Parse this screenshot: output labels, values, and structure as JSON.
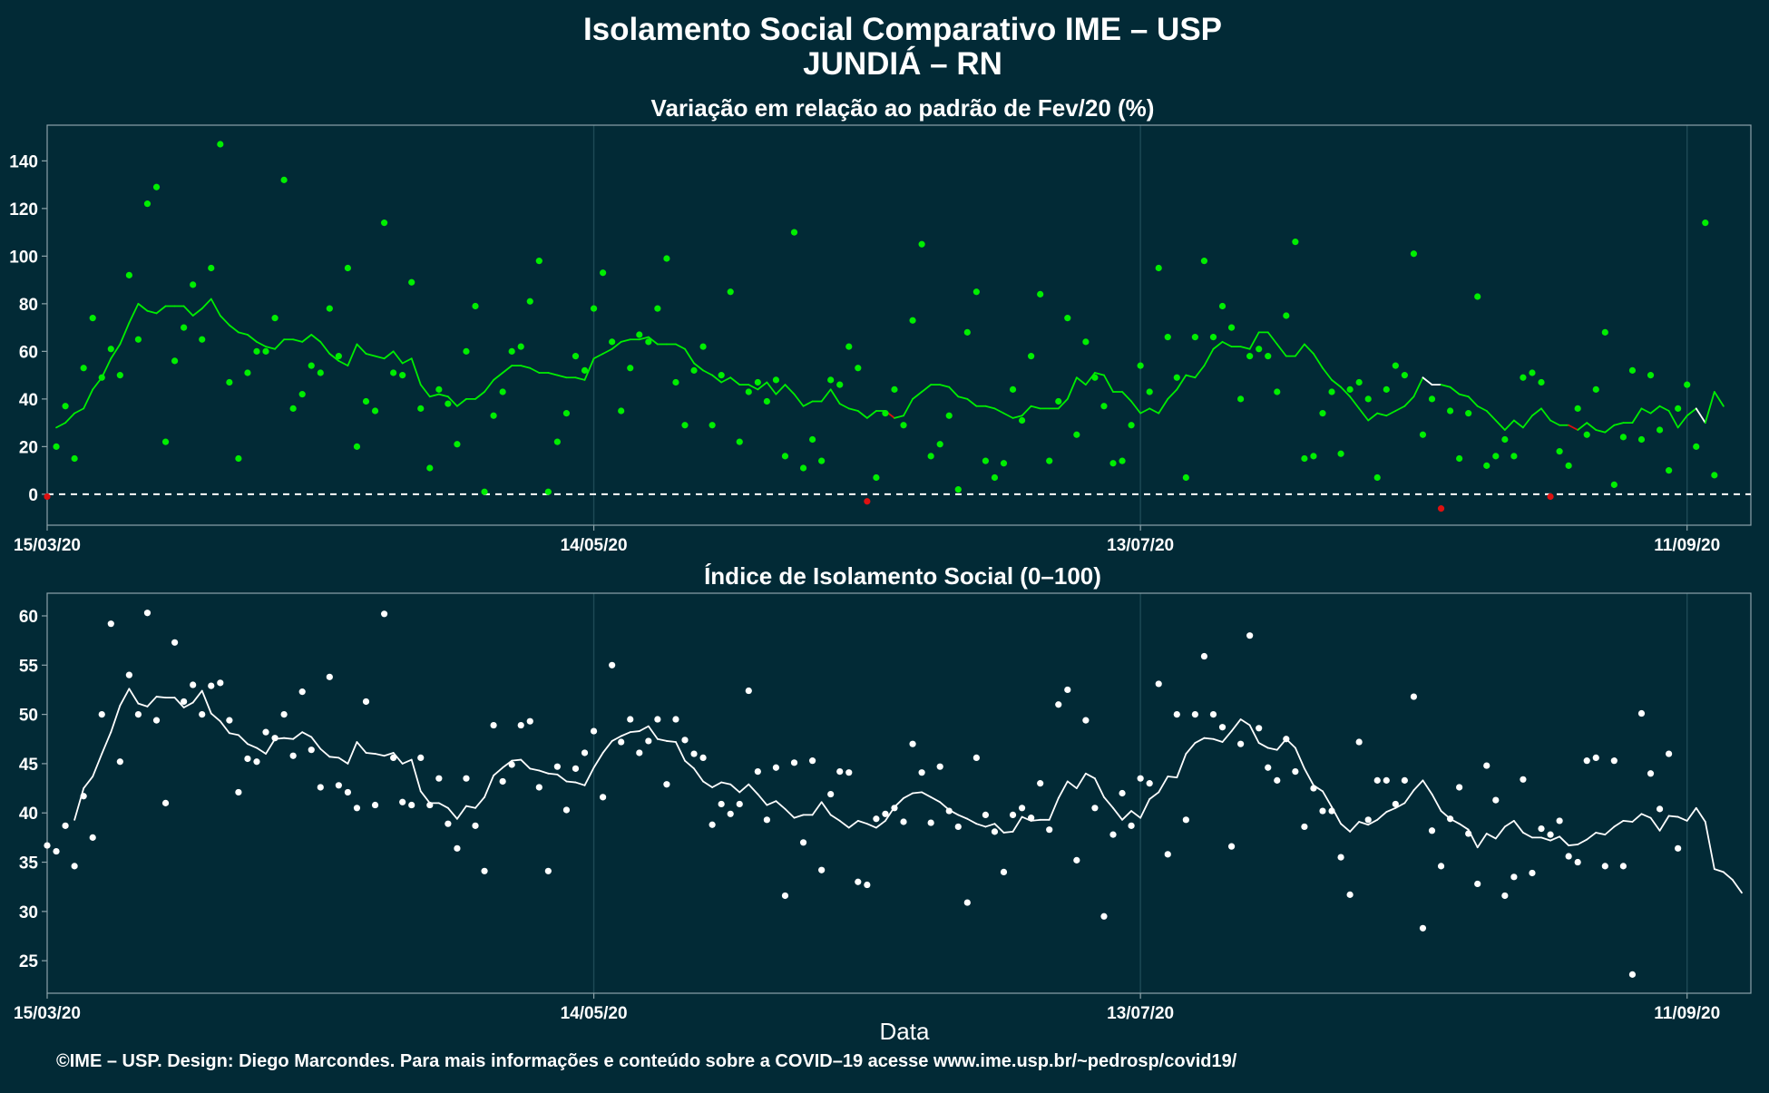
{
  "header": {
    "title": "Isolamento Social Comparativo IME – USP",
    "subtitle": "JUNDIÁ – RN"
  },
  "caption": "©IME – USP. Design: Diego Marcondes. Para mais informações e conteúdo sobre a COVID–19 acesse www.ime.usp.br/~pedrosp/covid19/",
  "colors": {
    "background": "#022a36",
    "panel_border": "#8da3aa",
    "grid": "#1e4a56",
    "green": "#00ee00",
    "red": "#dd1111",
    "white": "#ffffff"
  },
  "chart_data": [
    {
      "type": "scatter",
      "title": "Variação em relação ao padrão de Fev/20 (%)",
      "xlabel": "",
      "ylabel": "",
      "x_start": "15/03/20",
      "x_end": "18/09/20",
      "x_ticks": [
        "15/03/20",
        "14/05/20",
        "13/07/20",
        "11/09/20"
      ],
      "y_ticks": [
        0,
        20,
        40,
        60,
        80,
        100,
        120,
        140
      ],
      "ylim": [
        -13,
        155
      ],
      "reference_line": 0,
      "series": [
        {
          "kind": "daily_points",
          "values": [
            -1,
            20,
            37,
            15,
            53,
            74,
            49,
            61,
            50,
            92,
            65,
            122,
            129,
            22,
            56,
            70,
            88,
            65,
            95,
            147,
            47,
            15,
            51,
            60,
            60,
            74,
            132,
            36,
            42,
            54,
            51,
            78,
            58,
            95,
            20,
            39,
            35,
            114,
            51,
            50,
            89,
            36,
            11,
            44,
            38,
            21,
            60,
            79,
            1,
            33,
            43,
            60,
            62,
            81,
            98,
            1,
            22,
            34,
            58,
            52,
            78,
            93,
            64,
            35,
            53,
            67,
            64,
            78,
            99,
            47,
            29,
            52,
            62,
            29,
            50,
            85,
            22,
            43,
            47,
            39,
            48,
            16,
            110,
            11,
            23,
            14,
            48,
            46,
            62,
            53,
            -3,
            7,
            34,
            44,
            29,
            73,
            105,
            16,
            21,
            33,
            2,
            68,
            85,
            14,
            7,
            13,
            44,
            31,
            58,
            84,
            14,
            39,
            74,
            25,
            64,
            49,
            37,
            13,
            14,
            29,
            54,
            43,
            95,
            66,
            49,
            7,
            66,
            98,
            66,
            79,
            70,
            40,
            58,
            61,
            58,
            43,
            75,
            106,
            15,
            16,
            34,
            43,
            17,
            44,
            47,
            40,
            7,
            44,
            54,
            50,
            101,
            25,
            40,
            -6,
            35,
            15,
            34,
            83,
            12,
            16,
            23,
            16,
            49,
            51,
            47,
            -1,
            18,
            12,
            36,
            25,
            44,
            68,
            4,
            24,
            52,
            23,
            50,
            27,
            10,
            36,
            46,
            20,
            114,
            8
          ]
        },
        {
          "kind": "moving_average",
          "values": [
            null,
            28,
            30,
            34,
            36,
            44,
            49,
            57,
            63,
            72,
            80,
            77,
            76,
            79,
            79,
            79,
            75,
            78,
            82,
            75,
            71,
            68,
            67,
            64,
            62,
            61,
            65,
            65,
            64,
            67,
            64,
            59,
            56,
            54,
            63,
            59,
            58,
            57,
            60,
            55,
            57,
            46,
            41,
            42,
            41,
            37,
            40,
            40,
            43,
            48,
            51,
            54,
            54,
            53,
            51,
            51,
            50,
            49,
            49,
            48,
            57,
            59,
            61,
            64,
            65,
            65,
            66,
            63,
            63,
            63,
            61,
            55,
            52,
            50,
            47,
            49,
            46,
            46,
            44,
            47,
            42,
            46,
            42,
            37,
            39,
            39,
            44,
            38,
            36,
            35,
            32,
            35,
            35,
            32,
            33,
            40,
            43,
            46,
            46,
            45,
            41,
            40,
            37,
            37,
            36,
            34,
            32,
            33,
            37,
            36,
            36,
            36,
            40,
            49,
            46,
            51,
            50,
            43,
            43,
            39,
            34,
            36,
            34,
            40,
            44,
            50,
            49,
            54,
            61,
            64,
            62,
            62,
            61,
            68,
            68,
            63,
            58,
            58,
            63,
            59,
            53,
            48,
            45,
            41,
            36,
            31,
            34,
            33,
            35,
            37,
            41,
            49,
            46,
            46,
            45,
            42,
            41,
            37,
            35,
            31,
            27,
            31,
            28,
            33,
            36,
            31,
            29,
            29,
            27,
            30,
            27,
            26,
            29,
            30,
            30,
            36,
            34,
            37,
            35,
            28,
            33,
            36,
            30,
            43,
            37
          ]
        }
      ]
    },
    {
      "type": "scatter",
      "title": "Índice de Isolamento Social (0–100)",
      "xlabel": "Data",
      "ylabel": "",
      "x_start": "15/03/20",
      "x_end": "18/09/20",
      "x_ticks": [
        "15/03/20",
        "14/05/20",
        "13/07/20",
        "11/09/20"
      ],
      "y_ticks": [
        25,
        30,
        35,
        40,
        45,
        50,
        55,
        60
      ],
      "ylim": [
        21.7,
        62.3
      ],
      "series": [
        {
          "kind": "daily_points",
          "values": [
            36.7,
            36.1,
            38.7,
            34.6,
            41.7,
            37.5,
            50,
            59.2,
            45.2,
            54,
            50,
            60.3,
            49.4,
            41,
            57.3,
            51.3,
            53,
            50,
            52.9,
            53.2,
            49.4,
            42.1,
            45.5,
            45.2,
            48.2,
            47.6,
            50,
            45.8,
            52.3,
            46.4,
            42.6,
            53.8,
            42.8,
            42.1,
            40.5,
            51.3,
            40.8,
            60.2,
            45.6,
            41.1,
            40.8,
            45.6,
            40.8,
            43.5,
            38.9,
            36.4,
            43.5,
            38.7,
            34.1,
            48.9,
            43.2,
            44.9,
            48.9,
            49.3,
            42.6,
            34.1,
            44.7,
            40.3,
            44.5,
            46.1,
            48.3,
            41.6,
            55,
            47.2,
            49.5,
            46.1,
            47.3,
            49.5,
            42.9,
            49.5,
            47.4,
            46,
            45.6,
            38.8,
            40.9,
            39.9,
            40.9,
            52.4,
            44.2,
            39.3,
            44.6,
            31.6,
            45.1,
            37,
            45.3,
            34.2,
            41.9,
            44.2,
            44.1,
            33,
            32.7,
            39.4,
            39.9,
            40.5,
            39.1,
            47,
            44.1,
            39,
            44.7,
            40.2,
            38.6,
            30.9,
            45.6,
            39.8,
            38.1,
            34,
            39.8,
            40.5,
            39.5,
            43,
            38.3,
            51,
            52.5,
            35.2,
            49.4,
            40.5,
            29.5,
            37.8,
            42,
            38.7,
            43.5,
            43,
            53.1,
            35.8,
            50,
            39.3,
            50,
            55.9,
            50,
            48.7,
            36.6,
            47,
            58,
            48.6,
            44.6,
            43.3,
            47.5,
            44.2,
            38.6,
            42.5,
            40.2,
            40.2,
            35.5,
            31.7,
            47.2,
            39.3,
            43.3,
            43.3,
            40.9,
            43.3,
            51.8,
            28.3,
            38.2,
            34.6,
            39.4,
            42.6,
            37.9,
            32.8,
            44.8,
            41.3,
            31.6,
            33.5,
            43.4,
            33.9,
            38.4,
            37.8,
            39.2,
            35.6,
            35,
            45.3,
            45.6,
            34.6,
            45.3,
            34.6,
            23.6,
            50.1,
            44,
            40.4,
            46,
            36.4
          ]
        },
        {
          "kind": "moving_average",
          "values": [
            null,
            null,
            null,
            39.3,
            42.5,
            43.7,
            46,
            48.2,
            50.9,
            52.6,
            51.1,
            50.8,
            51.8,
            51.7,
            51.7,
            50.7,
            51.2,
            52.4,
            50.1,
            49.3,
            48.1,
            47.9,
            47,
            46.6,
            46,
            47.5,
            47.6,
            47.5,
            48.2,
            47.7,
            46.5,
            45.7,
            45.6,
            45,
            47.2,
            46.1,
            46,
            45.8,
            46.1,
            45,
            45.4,
            42.2,
            41,
            41,
            40.5,
            39.4,
            40.7,
            40.5,
            41.6,
            43.8,
            44.6,
            45.3,
            45.4,
            44.5,
            44.3,
            44,
            43.9,
            43.2,
            43.1,
            42.8,
            44.6,
            46.1,
            47.3,
            47.8,
            48.2,
            48.3,
            48.8,
            47.5,
            47.3,
            47.2,
            45.3,
            44.5,
            43.2,
            42.6,
            43.1,
            42.9,
            42.1,
            42.9,
            41.9,
            40.8,
            41.2,
            40.4,
            39.5,
            39.8,
            39.8,
            41.1,
            39.8,
            39.2,
            38.5,
            39.2,
            38.9,
            38.5,
            39.2,
            40.6,
            41.5,
            42,
            42.1,
            41.6,
            41.1,
            40.3,
            39.8,
            39.4,
            38.9,
            38.6,
            38.9,
            38,
            38.1,
            39.6,
            39.2,
            39.3,
            39.3,
            41.5,
            43.2,
            42.5,
            44,
            43.5,
            41.6,
            40.5,
            39.3,
            40.2,
            39.5,
            41.4,
            42.1,
            43.7,
            43.6,
            46,
            47.1,
            47.6,
            47.5,
            47.2,
            48.3,
            49.5,
            48.9,
            47.1,
            46.6,
            46.4,
            47.5,
            46.6,
            44.5,
            42.8,
            42.2,
            40.6,
            38.9,
            38.1,
            39.1,
            38.8,
            39.3,
            40.1,
            40.5,
            41,
            42.3,
            43.3,
            41.9,
            40.2,
            39.4,
            38.9,
            38.3,
            36.5,
            37.9,
            37.4,
            38.6,
            39.2,
            38,
            37.5,
            37.5,
            37.2,
            37.6,
            36.7,
            36.8,
            37.3,
            38,
            37.8,
            38.6,
            39.2,
            39.1,
            39.9,
            39.5,
            38.2,
            39.7,
            39.6,
            39.2,
            40.5,
            39.1,
            34.3,
            34,
            33.2,
            31.9
          ]
        }
      ]
    }
  ]
}
